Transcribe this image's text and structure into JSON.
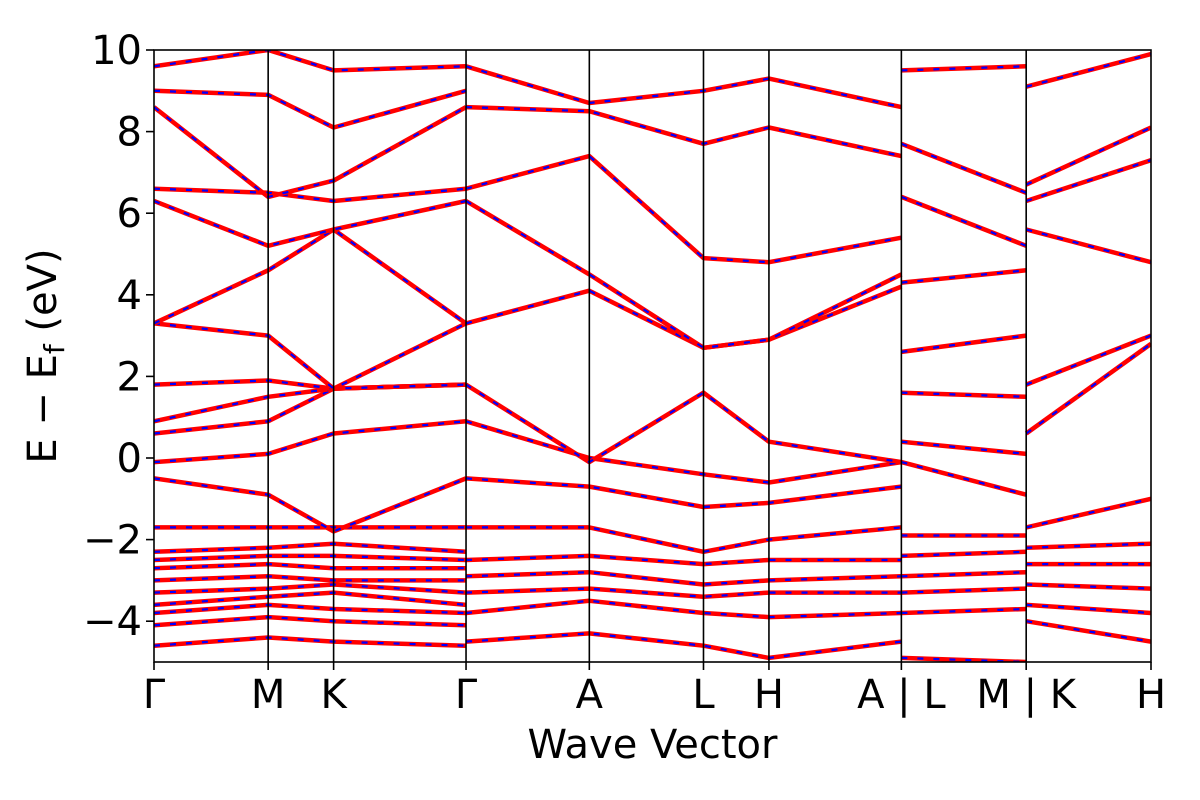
{
  "chart_data": {
    "type": "line",
    "title": "",
    "xlabel": "Wave Vector",
    "ylabel_main": "E − E",
    "ylabel_sub": "f",
    "ylabel_unit": " (eV)",
    "ylim": [
      -5,
      10
    ],
    "yticks": [
      -4,
      -2,
      0,
      2,
      4,
      6,
      8,
      10
    ],
    "ytick_labels": [
      "−4",
      "−2",
      "0",
      "2",
      "4",
      "6",
      "8",
      "10"
    ],
    "xrange": [
      0,
      6.55
    ],
    "kpoints": [
      {
        "label": "Γ",
        "x": 0.0
      },
      {
        "label": "M",
        "x": 0.75
      },
      {
        "label": "K",
        "x": 1.18
      },
      {
        "label": "Γ",
        "x": 2.05
      },
      {
        "label": "A",
        "x": 2.86
      },
      {
        "label": "L",
        "x": 3.61
      },
      {
        "label": "H",
        "x": 4.04
      },
      {
        "label": "A | L",
        "x": 4.91
      },
      {
        "label": "M | K",
        "x": 5.73
      },
      {
        "label": "H",
        "x": 6.55
      }
    ],
    "grid": false,
    "legend": "none",
    "colors": {
      "band_solid": "#ff0000",
      "band_dashed": "#0000ff",
      "kpath_line": "#000000"
    },
    "series": [
      {
        "x": [
          0,
          0.75,
          1.18,
          2.05
        ],
        "y": [
          -4.6,
          -4.4,
          -4.5,
          -4.6
        ]
      },
      {
        "x": [
          0,
          0.75,
          1.18,
          2.05
        ],
        "y": [
          -4.1,
          -3.9,
          -4.0,
          -4.1
        ]
      },
      {
        "x": [
          0,
          0.75,
          1.18,
          2.05
        ],
        "y": [
          -3.8,
          -3.6,
          -3.7,
          -3.8
        ]
      },
      {
        "x": [
          0,
          0.75,
          1.18,
          2.05
        ],
        "y": [
          -3.6,
          -3.4,
          -3.3,
          -3.6
        ]
      },
      {
        "x": [
          0,
          0.75,
          1.18,
          2.05
        ],
        "y": [
          -3.3,
          -3.2,
          -3.1,
          -3.3
        ]
      },
      {
        "x": [
          0,
          0.75,
          1.18,
          2.05
        ],
        "y": [
          -3.0,
          -2.9,
          -3.0,
          -3.0
        ]
      },
      {
        "x": [
          0,
          0.75,
          1.18,
          2.05
        ],
        "y": [
          -2.7,
          -2.6,
          -2.7,
          -2.7
        ]
      },
      {
        "x": [
          0,
          0.75,
          1.18,
          2.05
        ],
        "y": [
          -2.5,
          -2.4,
          -2.4,
          -2.5
        ]
      },
      {
        "x": [
          0,
          0.75,
          1.18,
          2.05
        ],
        "y": [
          -2.3,
          -2.2,
          -2.1,
          -2.3
        ]
      },
      {
        "x": [
          0,
          0.75,
          1.18,
          2.05
        ],
        "y": [
          -1.7,
          -1.7,
          -1.7,
          -1.7
        ]
      },
      {
        "x": [
          0,
          0.75,
          1.18,
          2.05
        ],
        "y": [
          -0.5,
          -0.9,
          -1.8,
          -0.5
        ]
      },
      {
        "x": [
          0,
          0.75,
          1.18,
          2.05
        ],
        "y": [
          -0.1,
          0.1,
          0.6,
          0.9
        ]
      },
      {
        "x": [
          0,
          0.75,
          1.18,
          2.05
        ],
        "y": [
          0.6,
          0.9,
          1.7,
          1.8
        ]
      },
      {
        "x": [
          0,
          0.75,
          1.18,
          2.05
        ],
        "y": [
          0.9,
          1.5,
          1.7,
          1.8
        ]
      },
      {
        "x": [
          0,
          0.75,
          1.18,
          2.05
        ],
        "y": [
          1.8,
          1.9,
          1.7,
          1.8
        ]
      },
      {
        "x": [
          0,
          0.75,
          1.18,
          2.05
        ],
        "y": [
          3.3,
          3.0,
          1.7,
          3.3
        ]
      },
      {
        "x": [
          0,
          0.75,
          1.18,
          2.05
        ],
        "y": [
          3.3,
          4.6,
          5.6,
          3.3
        ]
      },
      {
        "x": [
          0,
          0.75,
          1.18,
          2.05
        ],
        "y": [
          6.3,
          5.2,
          5.6,
          6.3
        ]
      },
      {
        "x": [
          0,
          0.75,
          1.18,
          2.05
        ],
        "y": [
          6.6,
          6.5,
          6.3,
          6.6
        ]
      },
      {
        "x": [
          0,
          0.75,
          1.18,
          2.05
        ],
        "y": [
          8.6,
          6.4,
          6.8,
          8.6
        ]
      },
      {
        "x": [
          0,
          0.75,
          1.18,
          2.05
        ],
        "y": [
          9.0,
          8.9,
          8.1,
          9.0
        ]
      },
      {
        "x": [
          0,
          0.75,
          1.18,
          2.05
        ],
        "y": [
          9.6,
          10.0,
          9.5,
          9.6
        ]
      },
      {
        "x": [
          2.05,
          2.86,
          3.61,
          4.04,
          4.91
        ],
        "y": [
          -4.5,
          -4.3,
          -4.6,
          -4.9,
          -4.5
        ]
      },
      {
        "x": [
          2.05,
          2.86,
          3.61,
          4.04,
          4.91
        ],
        "y": [
          -3.8,
          -3.5,
          -3.8,
          -3.9,
          -3.8
        ]
      },
      {
        "x": [
          2.05,
          2.86,
          3.61,
          4.04,
          4.91
        ],
        "y": [
          -3.3,
          -3.2,
          -3.4,
          -3.3,
          -3.3
        ]
      },
      {
        "x": [
          2.05,
          2.86,
          3.61,
          4.04,
          4.91
        ],
        "y": [
          -2.9,
          -2.8,
          -3.1,
          -3.0,
          -2.9
        ]
      },
      {
        "x": [
          2.05,
          2.86,
          3.61,
          4.04,
          4.91
        ],
        "y": [
          -2.5,
          -2.4,
          -2.6,
          -2.5,
          -2.5
        ]
      },
      {
        "x": [
          2.05,
          2.86,
          3.61,
          4.04,
          4.91
        ],
        "y": [
          -1.7,
          -1.7,
          -2.3,
          -2.0,
          -1.7
        ]
      },
      {
        "x": [
          2.05,
          2.86,
          3.61,
          4.04,
          4.91
        ],
        "y": [
          -0.5,
          -0.7,
          -1.2,
          -1.1,
          -0.7
        ]
      },
      {
        "x": [
          2.05,
          2.86,
          3.61,
          4.04,
          4.91
        ],
        "y": [
          0.9,
          0.0,
          -0.4,
          -0.6,
          -0.1
        ]
      },
      {
        "x": [
          2.05,
          2.86,
          3.61,
          4.04,
          4.91
        ],
        "y": [
          1.8,
          -0.1,
          1.6,
          0.4,
          -0.1
        ]
      },
      {
        "x": [
          2.05,
          2.86,
          3.61,
          4.04,
          4.91
        ],
        "y": [
          3.3,
          4.1,
          2.7,
          2.9,
          4.2
        ]
      },
      {
        "x": [
          2.05,
          2.86,
          3.61,
          4.04,
          4.91
        ],
        "y": [
          6.3,
          4.5,
          2.7,
          2.9,
          4.5
        ]
      },
      {
        "x": [
          2.05,
          2.86,
          3.61,
          4.04,
          4.91
        ],
        "y": [
          6.6,
          7.4,
          4.9,
          4.8,
          5.4
        ]
      },
      {
        "x": [
          2.05,
          2.86,
          3.61,
          4.04,
          4.91
        ],
        "y": [
          8.6,
          8.5,
          7.7,
          8.1,
          7.4
        ]
      },
      {
        "x": [
          2.05,
          2.86,
          3.61,
          4.04,
          4.91
        ],
        "y": [
          9.6,
          8.7,
          9.0,
          9.3,
          8.6
        ]
      },
      {
        "x": [
          4.91,
          5.73
        ],
        "y": [
          -4.9,
          -5.0
        ]
      },
      {
        "x": [
          4.91,
          5.73
        ],
        "y": [
          -3.8,
          -3.7
        ]
      },
      {
        "x": [
          4.91,
          5.73
        ],
        "y": [
          -3.3,
          -3.2
        ]
      },
      {
        "x": [
          4.91,
          5.73
        ],
        "y": [
          -2.9,
          -2.8
        ]
      },
      {
        "x": [
          4.91,
          5.73
        ],
        "y": [
          -2.4,
          -2.3
        ]
      },
      {
        "x": [
          4.91,
          5.73
        ],
        "y": [
          -1.9,
          -1.9
        ]
      },
      {
        "x": [
          4.91,
          5.73
        ],
        "y": [
          -0.1,
          -0.9
        ]
      },
      {
        "x": [
          4.91,
          5.73
        ],
        "y": [
          0.4,
          0.1
        ]
      },
      {
        "x": [
          4.91,
          5.73
        ],
        "y": [
          1.6,
          1.5
        ]
      },
      {
        "x": [
          4.91,
          5.73
        ],
        "y": [
          2.6,
          3.0
        ]
      },
      {
        "x": [
          4.91,
          5.73
        ],
        "y": [
          4.3,
          4.6
        ]
      },
      {
        "x": [
          4.91,
          5.73
        ],
        "y": [
          6.4,
          5.2
        ]
      },
      {
        "x": [
          4.91,
          5.73
        ],
        "y": [
          7.7,
          6.5
        ]
      },
      {
        "x": [
          4.91,
          5.73
        ],
        "y": [
          9.5,
          9.6
        ]
      },
      {
        "x": [
          5.73,
          6.55
        ],
        "y": [
          -4.0,
          -4.5
        ]
      },
      {
        "x": [
          5.73,
          6.55
        ],
        "y": [
          -3.6,
          -3.8
        ]
      },
      {
        "x": [
          5.73,
          6.55
        ],
        "y": [
          -3.1,
          -3.2
        ]
      },
      {
        "x": [
          5.73,
          6.55
        ],
        "y": [
          -2.6,
          -2.6
        ]
      },
      {
        "x": [
          5.73,
          6.55
        ],
        "y": [
          -2.2,
          -2.1
        ]
      },
      {
        "x": [
          5.73,
          6.55
        ],
        "y": [
          -1.7,
          -1.0
        ]
      },
      {
        "x": [
          5.73,
          6.55
        ],
        "y": [
          0.6,
          2.8
        ]
      },
      {
        "x": [
          5.73,
          6.55
        ],
        "y": [
          1.8,
          3.0
        ]
      },
      {
        "x": [
          5.73,
          6.55
        ],
        "y": [
          5.6,
          4.8
        ]
      },
      {
        "x": [
          5.73,
          6.55
        ],
        "y": [
          6.3,
          7.3
        ]
      },
      {
        "x": [
          5.73,
          6.55
        ],
        "y": [
          6.7,
          8.1
        ]
      },
      {
        "x": [
          5.73,
          6.55
        ],
        "y": [
          9.1,
          9.9
        ]
      }
    ]
  }
}
